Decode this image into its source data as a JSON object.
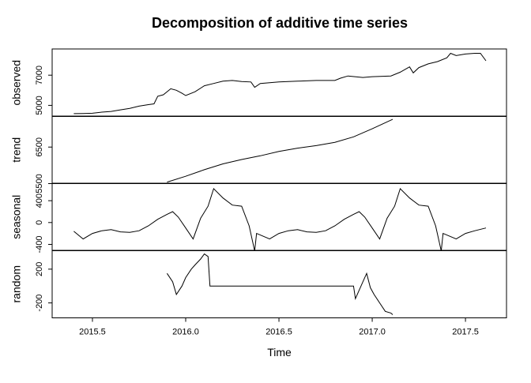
{
  "title": "Decomposition of additive time series",
  "chart_data": [
    {
      "type": "line",
      "ylabel": "observed",
      "color": "#000000",
      "x": [
        2015.4,
        2015.45,
        2015.5,
        2015.55,
        2015.6,
        2015.65,
        2015.7,
        2015.75,
        2015.8,
        2015.83,
        2015.85,
        2015.88,
        2015.92,
        2015.95,
        2015.98,
        2016.0,
        2016.05,
        2016.1,
        2016.15,
        2016.2,
        2016.25,
        2016.3,
        2016.35,
        2016.37,
        2016.4,
        2016.5,
        2016.6,
        2016.7,
        2016.8,
        2016.83,
        2016.87,
        2016.95,
        2017.0,
        2017.1,
        2017.15,
        2017.2,
        2017.22,
        2017.25,
        2017.3,
        2017.35,
        2017.4,
        2017.42,
        2017.45,
        2017.5,
        2017.55,
        2017.58,
        2017.61
      ],
      "values": [
        4450,
        4460,
        4480,
        4550,
        4600,
        4700,
        4800,
        4950,
        5050,
        5100,
        5600,
        5700,
        6100,
        6000,
        5800,
        5650,
        5900,
        6300,
        6450,
        6600,
        6650,
        6580,
        6550,
        6200,
        6450,
        6550,
        6600,
        6650,
        6650,
        6800,
        6950,
        6850,
        6900,
        6950,
        7200,
        7550,
        7150,
        7500,
        7750,
        7900,
        8150,
        8450,
        8300,
        8400,
        8450,
        8450,
        7950
      ],
      "xlim": [
        2015.284,
        2017.72
      ],
      "ylim": [
        4263,
        8737
      ],
      "yticks": [
        5000,
        7000
      ]
    },
    {
      "type": "line",
      "ylabel": "trend",
      "color": "#000000",
      "x": [
        2015.9,
        2016.0,
        2016.1,
        2016.2,
        2016.3,
        2016.4,
        2016.5,
        2016.6,
        2016.7,
        2016.8,
        2016.9,
        2017.0,
        2017.11
      ],
      "values": [
        5540,
        5700,
        5880,
        6040,
        6160,
        6260,
        6380,
        6470,
        6540,
        6630,
        6780,
        7000,
        7260
      ],
      "xlim": [
        2015.284,
        2017.72
      ],
      "ylim": [
        5500,
        7348
      ],
      "yticks": [
        5500,
        6500
      ]
    },
    {
      "type": "line",
      "ylabel": "seasonal",
      "color": "#000000",
      "x": [
        2015.4,
        2015.45,
        2015.5,
        2015.55,
        2015.6,
        2015.65,
        2015.7,
        2015.75,
        2015.8,
        2015.85,
        2015.9,
        2015.93,
        2015.96,
        2016.0,
        2016.04,
        2016.08,
        2016.12,
        2016.15,
        2016.2,
        2016.25,
        2016.3,
        2016.34,
        2016.37,
        2016.38,
        2016.45,
        2016.5,
        2016.55,
        2016.6,
        2016.65,
        2016.7,
        2016.75,
        2016.8,
        2016.85,
        2016.9,
        2016.93,
        2016.96,
        2017.0,
        2017.04,
        2017.08,
        2017.12,
        2017.15,
        2017.2,
        2017.25,
        2017.3,
        2017.34,
        2017.37,
        2017.38,
        2017.45,
        2017.5,
        2017.55,
        2017.61
      ],
      "values": [
        -160,
        -300,
        -200,
        -150,
        -130,
        -170,
        -180,
        -150,
        -60,
        60,
        150,
        200,
        100,
        -100,
        -300,
        80,
        300,
        620,
        450,
        320,
        300,
        -60,
        -520,
        -200,
        -300,
        -200,
        -150,
        -130,
        -170,
        -180,
        -150,
        -60,
        60,
        150,
        200,
        100,
        -100,
        -300,
        80,
        300,
        620,
        450,
        320,
        300,
        -60,
        -520,
        -200,
        -300,
        -200,
        -150,
        -100
      ],
      "xlim": [
        2015.284,
        2017.72
      ],
      "ylim": [
        -516,
        720
      ],
      "yticks": [
        -400,
        0,
        400
      ]
    },
    {
      "type": "line",
      "ylabel": "random",
      "color": "#000000",
      "x": [
        2015.9,
        2015.93,
        2015.95,
        2015.98,
        2016.0,
        2016.03,
        2016.05,
        2016.08,
        2016.1,
        2016.12,
        2016.13,
        2016.9,
        2016.91,
        2016.93,
        2016.95,
        2016.97,
        2016.99,
        2017.01,
        2017.04,
        2017.07,
        2017.1,
        2017.11
      ],
      "values": [
        150,
        50,
        -100,
        0,
        100,
        200,
        250,
        320,
        380,
        350,
        0,
        0,
        -150,
        -50,
        50,
        150,
        -20,
        -100,
        -200,
        -300,
        -320,
        -340
      ],
      "xlim": [
        2015.284,
        2017.72
      ],
      "ylim": [
        -377,
        423
      ],
      "yticks": [
        -200,
        200
      ],
      "xlabel": "Time",
      "xticks": [
        2015.5,
        {
          "value": 2016,
          "label": "2016.0"
        },
        2016.5,
        {
          "value": 2017,
          "label": "2017.0"
        },
        2017.5
      ]
    }
  ]
}
